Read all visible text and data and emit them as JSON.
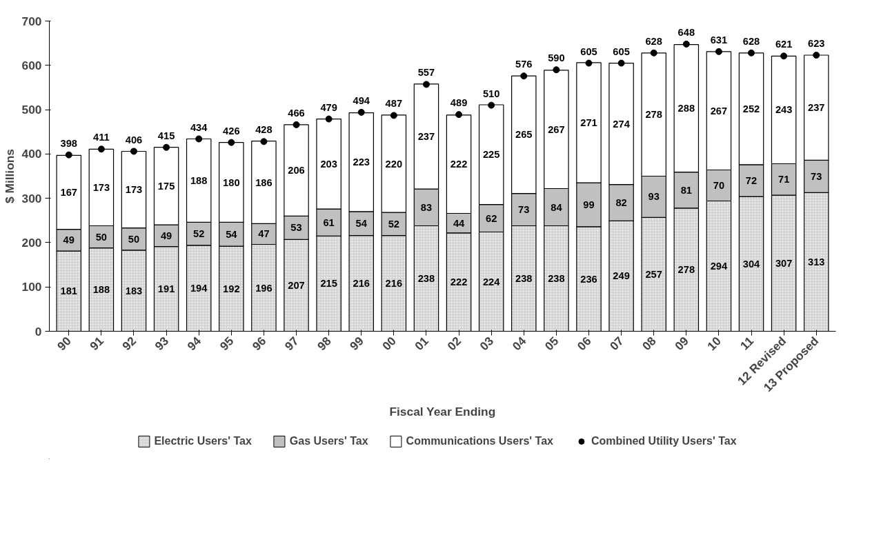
{
  "chart_data": {
    "type": "bar",
    "stacked": true,
    "xlabel": "Fiscal Year Ending",
    "ylabel": "$ Millions",
    "categories": [
      "90",
      "91",
      "92",
      "93",
      "94",
      "95",
      "96",
      "97",
      "98",
      "99",
      "00",
      "01",
      "02",
      "03",
      "04",
      "05",
      "06",
      "07",
      "08",
      "09",
      "10",
      "11",
      "12 Revised",
      "13 Proposed"
    ],
    "series": [
      {
        "name": "Electric Users' Tax",
        "color": "#d4d4d4",
        "values": [
          181,
          188,
          183,
          191,
          194,
          192,
          196,
          207,
          215,
          216,
          216,
          238,
          222,
          224,
          238,
          238,
          236,
          249,
          257,
          278,
          294,
          304,
          307,
          313
        ]
      },
      {
        "name": "Gas Users' Tax",
        "color": "#c0c0c0",
        "values": [
          49,
          50,
          50,
          49,
          52,
          54,
          47,
          53,
          61,
          54,
          52,
          83,
          44,
          62,
          73,
          84,
          99,
          82,
          93,
          81,
          70,
          72,
          71,
          73
        ]
      },
      {
        "name": "Communications Users' Tax",
        "color": "#ffffff",
        "values": [
          167,
          173,
          173,
          175,
          188,
          180,
          186,
          206,
          203,
          223,
          220,
          237,
          222,
          225,
          265,
          267,
          271,
          274,
          278,
          288,
          267,
          252,
          243,
          237
        ]
      },
      {
        "name": "Combined Utility Users' Tax",
        "type": "scatter",
        "color": "#000000",
        "values": [
          398,
          411,
          406,
          415,
          434,
          426,
          428,
          466,
          479,
          494,
          487,
          557,
          489,
          510,
          576,
          590,
          605,
          605,
          628,
          648,
          631,
          628,
          621,
          623
        ]
      }
    ],
    "ylim": [
      0,
      700
    ],
    "yticks": [
      0,
      100,
      200,
      300,
      400,
      500,
      600,
      700
    ],
    "data_labels": true,
    "grid": false,
    "legend": "bottom",
    "marker": "circle"
  }
}
